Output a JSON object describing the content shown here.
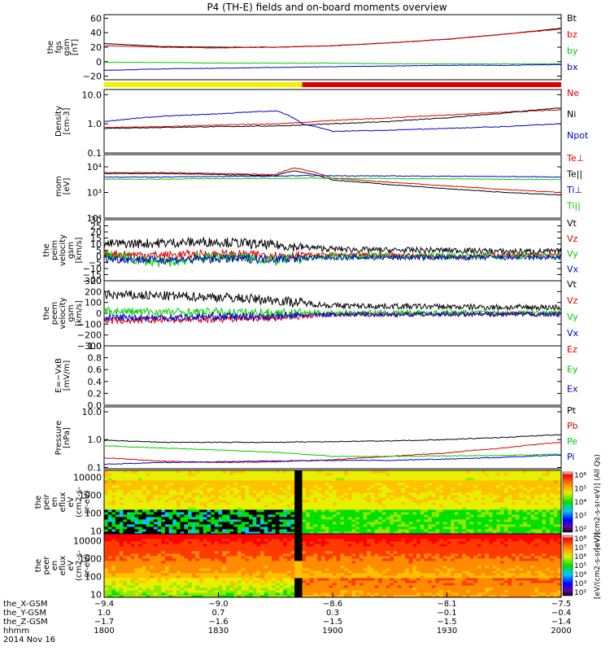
{
  "title": "P4 (TH-E) fields and on-board moments overview",
  "chart_data": [
    {
      "id": "fgs",
      "type": "line",
      "ylabel": [
        "the",
        "fgs",
        "gsm",
        "[nT]"
      ],
      "ylim": [
        -25,
        65
      ],
      "yticks": [
        -20,
        0,
        20,
        40,
        60
      ],
      "ytick_labels": [
        "−20",
        "0",
        "20",
        "40",
        "60"
      ],
      "x_hhmm": [
        1800,
        1815,
        1830,
        1845,
        1900,
        1915,
        1930,
        1945,
        2000
      ],
      "series": [
        {
          "name": "Bt",
          "color": "#000000",
          "values": [
            25,
            21,
            20,
            20,
            22,
            26,
            31,
            38,
            46
          ]
        },
        {
          "name": "bz",
          "color": "#dd0000",
          "values": [
            22,
            20,
            19,
            20,
            22,
            26,
            31,
            38,
            45
          ]
        },
        {
          "name": "by",
          "color": "#00cc00",
          "values": [
            -1,
            -1,
            -2,
            -2,
            -2,
            -3,
            -3,
            -3,
            -3
          ]
        },
        {
          "name": "bx",
          "color": "#0000cc",
          "values": [
            -12,
            -10,
            -9,
            -8,
            -7,
            -6,
            -5,
            -5,
            -4
          ]
        }
      ]
    },
    {
      "id": "density",
      "type": "line",
      "log": true,
      "ylabel": [
        "Density",
        "[cm-3]"
      ],
      "ylim": [
        0.1,
        15
      ],
      "yticks": [
        0.1,
        1.0,
        10.0
      ],
      "ytick_labels": [
        "0.1",
        "1.0",
        "10.0"
      ],
      "x_hhmm": [
        1800,
        1815,
        1830,
        1845,
        1852,
        1900,
        1915,
        1930,
        1945,
        2000
      ],
      "series": [
        {
          "name": "Ne",
          "color": "#dd0000",
          "values": [
            0.75,
            0.8,
            0.9,
            1.0,
            1.1,
            1.3,
            1.6,
            2.0,
            2.5,
            3.0
          ]
        },
        {
          "name": "Ni",
          "color": "#000000",
          "values": [
            0.7,
            0.75,
            0.8,
            0.85,
            0.9,
            1.0,
            1.2,
            1.6,
            2.3,
            3.5
          ]
        },
        {
          "name": "Npot",
          "color": "#0000cc",
          "values": [
            1.2,
            1.8,
            2.2,
            2.8,
            1.0,
            0.55,
            0.6,
            0.7,
            0.8,
            1.0
          ]
        }
      ]
    },
    {
      "id": "temperature",
      "type": "line",
      "log": true,
      "ylabel": [
        "mom",
        "[eV]"
      ],
      "ylim": [
        100,
        30000
      ],
      "yticks": [
        100,
        1000,
        10000
      ],
      "ytick_labels": [
        "10²",
        "10³",
        "10⁴"
      ],
      "x_hhmm": [
        1800,
        1815,
        1830,
        1845,
        1850,
        1900,
        1915,
        1930,
        1945,
        2000
      ],
      "series": [
        {
          "name": "Te⊥",
          "color": "#dd0000",
          "values": [
            6000,
            6000,
            5500,
            5000,
            9000,
            3500,
            2500,
            1800,
            1300,
            1000
          ]
        },
        {
          "name": "Te||",
          "color": "#000000",
          "values": [
            5500,
            5500,
            5000,
            4500,
            7000,
            3000,
            2000,
            1400,
            1000,
            800
          ]
        },
        {
          "name": "Ti⊥",
          "color": "#0000cc",
          "values": [
            4000,
            4000,
            4200,
            4300,
            4500,
            4500,
            4400,
            4300,
            4200,
            4000
          ]
        },
        {
          "name": "Ti||",
          "color": "#00cc00",
          "values": [
            3300,
            3300,
            3500,
            3500,
            3600,
            3600,
            3500,
            3400,
            3300,
            3200
          ]
        }
      ]
    },
    {
      "id": "peim_velocity",
      "type": "line",
      "ylabel": [
        "the",
        "peim",
        "velocity",
        "gsm",
        "[km/s]"
      ],
      "ylim": [
        -20,
        30
      ],
      "yticks": [
        -20,
        -15,
        -10,
        -5,
        0,
        5,
        10,
        15,
        20,
        25,
        30
      ],
      "ytick_labels": [
        "−20",
        "−15",
        "−10",
        "−5",
        "0",
        "5",
        "10",
        "15",
        "20",
        "25",
        "30"
      ],
      "x_hhmm": [
        1800,
        1815,
        1830,
        1845,
        1900,
        1915,
        1930,
        1945,
        2000
      ],
      "series": [
        {
          "name": "Vt",
          "color": "#000000",
          "values": [
            10,
            11,
            12,
            9,
            6,
            5,
            5,
            4,
            4
          ]
        },
        {
          "name": "Vz",
          "color": "#dd0000",
          "values": [
            2,
            1,
            2,
            1,
            1,
            1,
            0,
            1,
            1
          ]
        },
        {
          "name": "Vy",
          "color": "#00cc00",
          "values": [
            1,
            -5,
            0,
            -3,
            0,
            0,
            0,
            0,
            0
          ]
        },
        {
          "name": "Vx",
          "color": "#0000cc",
          "values": [
            -2,
            -3,
            -2,
            -2,
            -1,
            -1,
            -1,
            -1,
            -1
          ]
        }
      ]
    },
    {
      "id": "peem_velocity",
      "type": "line",
      "ylabel": [
        "the",
        "peem",
        "velocity",
        "gsm",
        "[km/s]"
      ],
      "ylim": [
        -300,
        300
      ],
      "yticks": [
        -300,
        -200,
        -100,
        0,
        100,
        200,
        300
      ],
      "ytick_labels": [
        "−300",
        "−200",
        "−100",
        "0",
        "100",
        "200",
        "300"
      ],
      "x_hhmm": [
        1800,
        1815,
        1830,
        1845,
        1900,
        1915,
        1930,
        1945,
        2000
      ],
      "series": [
        {
          "name": "Vt",
          "color": "#000000",
          "values": [
            170,
            160,
            150,
            120,
            70,
            65,
            60,
            55,
            55
          ]
        },
        {
          "name": "Vz",
          "color": "#dd0000",
          "values": [
            -70,
            -60,
            -50,
            -40,
            -10,
            -10,
            -5,
            -5,
            -5
          ]
        },
        {
          "name": "Vy",
          "color": "#00cc00",
          "values": [
            20,
            10,
            10,
            5,
            5,
            5,
            5,
            5,
            5
          ]
        },
        {
          "name": "Vx",
          "color": "#0000cc",
          "values": [
            -40,
            -40,
            -30,
            -30,
            -10,
            -10,
            -10,
            -10,
            -10
          ]
        }
      ]
    },
    {
      "id": "efield",
      "type": "line",
      "ylabel": [
        "E=−VxB",
        "[mV/m]"
      ],
      "ylim": [
        0,
        1
      ],
      "yticks": [
        0,
        0.2,
        0.4,
        0.6,
        0.8,
        1.0
      ],
      "ytick_labels": [
        "0.0",
        "0.2",
        "0.4",
        "0.6",
        "0.8",
        "1.0"
      ],
      "series": [
        {
          "name": "Ez",
          "color": "#dd0000",
          "values": []
        },
        {
          "name": "Ey",
          "color": "#00cc00",
          "values": []
        },
        {
          "name": "Ex",
          "color": "#0000cc",
          "values": []
        }
      ]
    },
    {
      "id": "pressure",
      "type": "line",
      "log": true,
      "ylabel": [
        "Pressure",
        "[nPa]"
      ],
      "ylim": [
        0.09,
        15
      ],
      "yticks": [
        0.1,
        1.0,
        10.0
      ],
      "ytick_labels": [
        "0.1",
        "1.0",
        "10.0"
      ],
      "x_hhmm": [
        1800,
        1815,
        1830,
        1845,
        1900,
        1915,
        1930,
        1945,
        2000
      ],
      "series": [
        {
          "name": "Pt",
          "color": "#000000",
          "values": [
            0.95,
            0.8,
            0.8,
            0.8,
            0.85,
            0.9,
            1.0,
            1.2,
            1.5
          ]
        },
        {
          "name": "Pb",
          "color": "#dd0000",
          "values": [
            0.22,
            0.17,
            0.15,
            0.16,
            0.19,
            0.25,
            0.33,
            0.5,
            0.8
          ]
        },
        {
          "name": "Pe",
          "color": "#00cc00",
          "values": [
            0.6,
            0.5,
            0.42,
            0.35,
            0.25,
            0.25,
            0.26,
            0.27,
            0.3
          ]
        },
        {
          "name": "Pi",
          "color": "#0000cc",
          "values": [
            0.13,
            0.15,
            0.16,
            0.17,
            0.18,
            0.18,
            0.2,
            0.23,
            0.28
          ]
        }
      ]
    },
    {
      "id": "peir_spec",
      "type": "heatmap",
      "log": true,
      "ylabel": [
        "the",
        "peir",
        "en",
        "eflux",
        "eV",
        "(cm2-s-",
        "sr-eV)"
      ],
      "ylim": [
        7,
        25000
      ],
      "yticks": [
        10,
        100,
        1000,
        10000
      ],
      "ytick_labels": [
        "10",
        "100",
        "1000",
        "10000"
      ],
      "colorbar_label": "[eV/(cm2-s-sr-eV)] (All Qs)",
      "colorbar_ticks": [
        "10²",
        "10³",
        "10⁴",
        "10⁵",
        "10⁶"
      ]
    },
    {
      "id": "peer_spec",
      "type": "heatmap",
      "log": true,
      "ylabel": [
        "the",
        "peer",
        "en",
        "eflux",
        "eV",
        "(cm2-s-",
        "sr-eV)"
      ],
      "ylim": [
        7,
        25000
      ],
      "yticks": [
        10,
        100,
        1000,
        10000
      ],
      "ytick_labels": [
        "10",
        "100",
        "1000",
        "10000"
      ],
      "colorbar_label": "[eV/(cm2-s-sr-eV)]",
      "colorbar_ticks": [
        "10²",
        "10³",
        "10⁴",
        "10⁵",
        "10⁶",
        "10⁷",
        "10⁸"
      ]
    }
  ],
  "mode_bar": {
    "yellow_until_hhmm": 1852,
    "yellow": "#f2f200",
    "red": "#e00000"
  },
  "xaxis": {
    "rows": [
      {
        "label": "the_X-GSM",
        "values": [
          "−9.4",
          "−9.0",
          "−8.6",
          "−8.1",
          "−7.5"
        ]
      },
      {
        "label": "the_Y-GSM",
        "values": [
          "1.0",
          "0.7",
          "0.3",
          "−0.1",
          "−0.4"
        ]
      },
      {
        "label": "the_Z-GSM",
        "values": [
          "−1.7",
          "−1.6",
          "−1.5",
          "−1.5",
          "−1.4"
        ]
      },
      {
        "label": "hhmm",
        "values": [
          "1800",
          "1830",
          "1900",
          "1930",
          "2000"
        ]
      }
    ],
    "date": "2014 Nov 16"
  }
}
